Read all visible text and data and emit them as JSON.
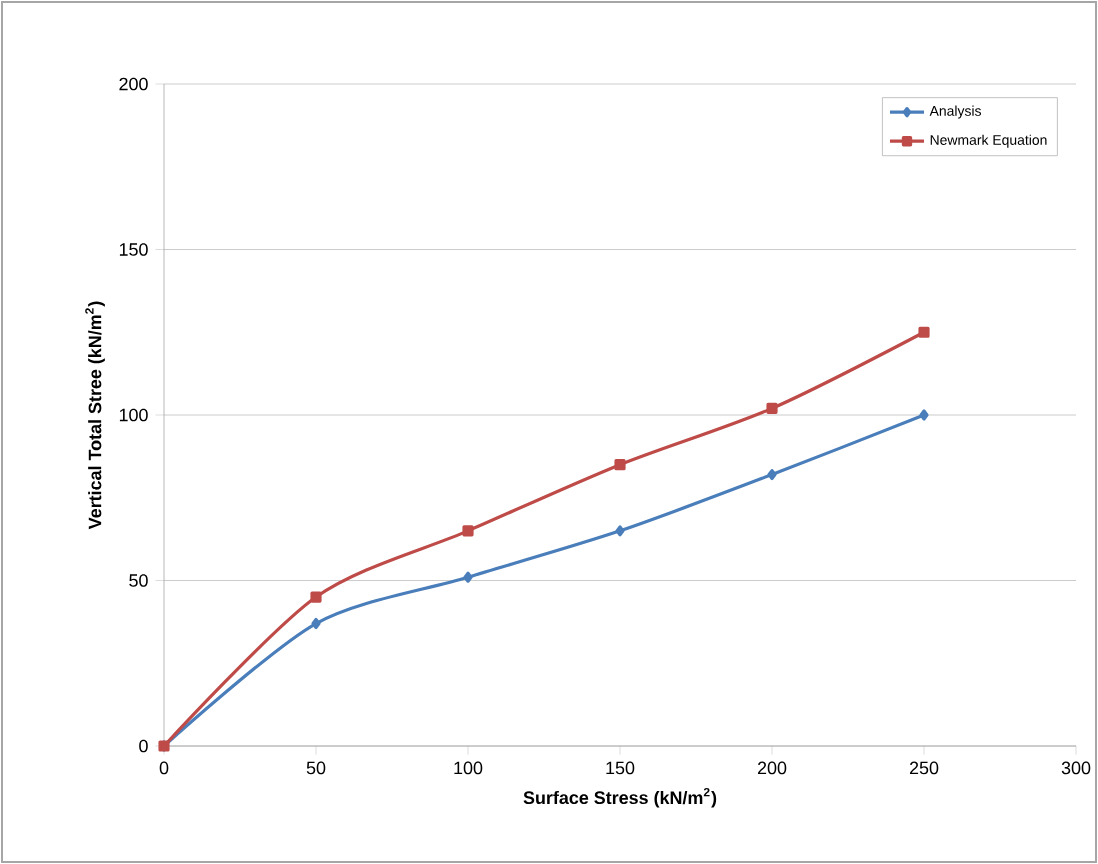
{
  "chart_data": {
    "type": "line",
    "xlabel": "Surface Stress (kN/m$^{2}$)",
    "ylabel": "Vertical Total Stree (kN/m$^{2}$)",
    "x": [
      0,
      50,
      100,
      150,
      200,
      250
    ],
    "series": [
      {
        "name": "Analysis",
        "color": "#4a7ebb",
        "marker": "diamond",
        "values": [
          0,
          37,
          51,
          65,
          82,
          100
        ]
      },
      {
        "name": "Newmark Equation",
        "color": "#be4b48",
        "marker": "square",
        "values": [
          0,
          45,
          65,
          85,
          102,
          125
        ]
      }
    ],
    "xlim": [
      0,
      300
    ],
    "xticks": [
      0,
      50,
      100,
      150,
      200,
      250,
      300
    ],
    "ylim": [
      0,
      200
    ],
    "yticks": [
      0,
      50,
      100,
      150,
      200
    ],
    "grid": "y",
    "legend": "top right",
    "line_style": "solid"
  }
}
